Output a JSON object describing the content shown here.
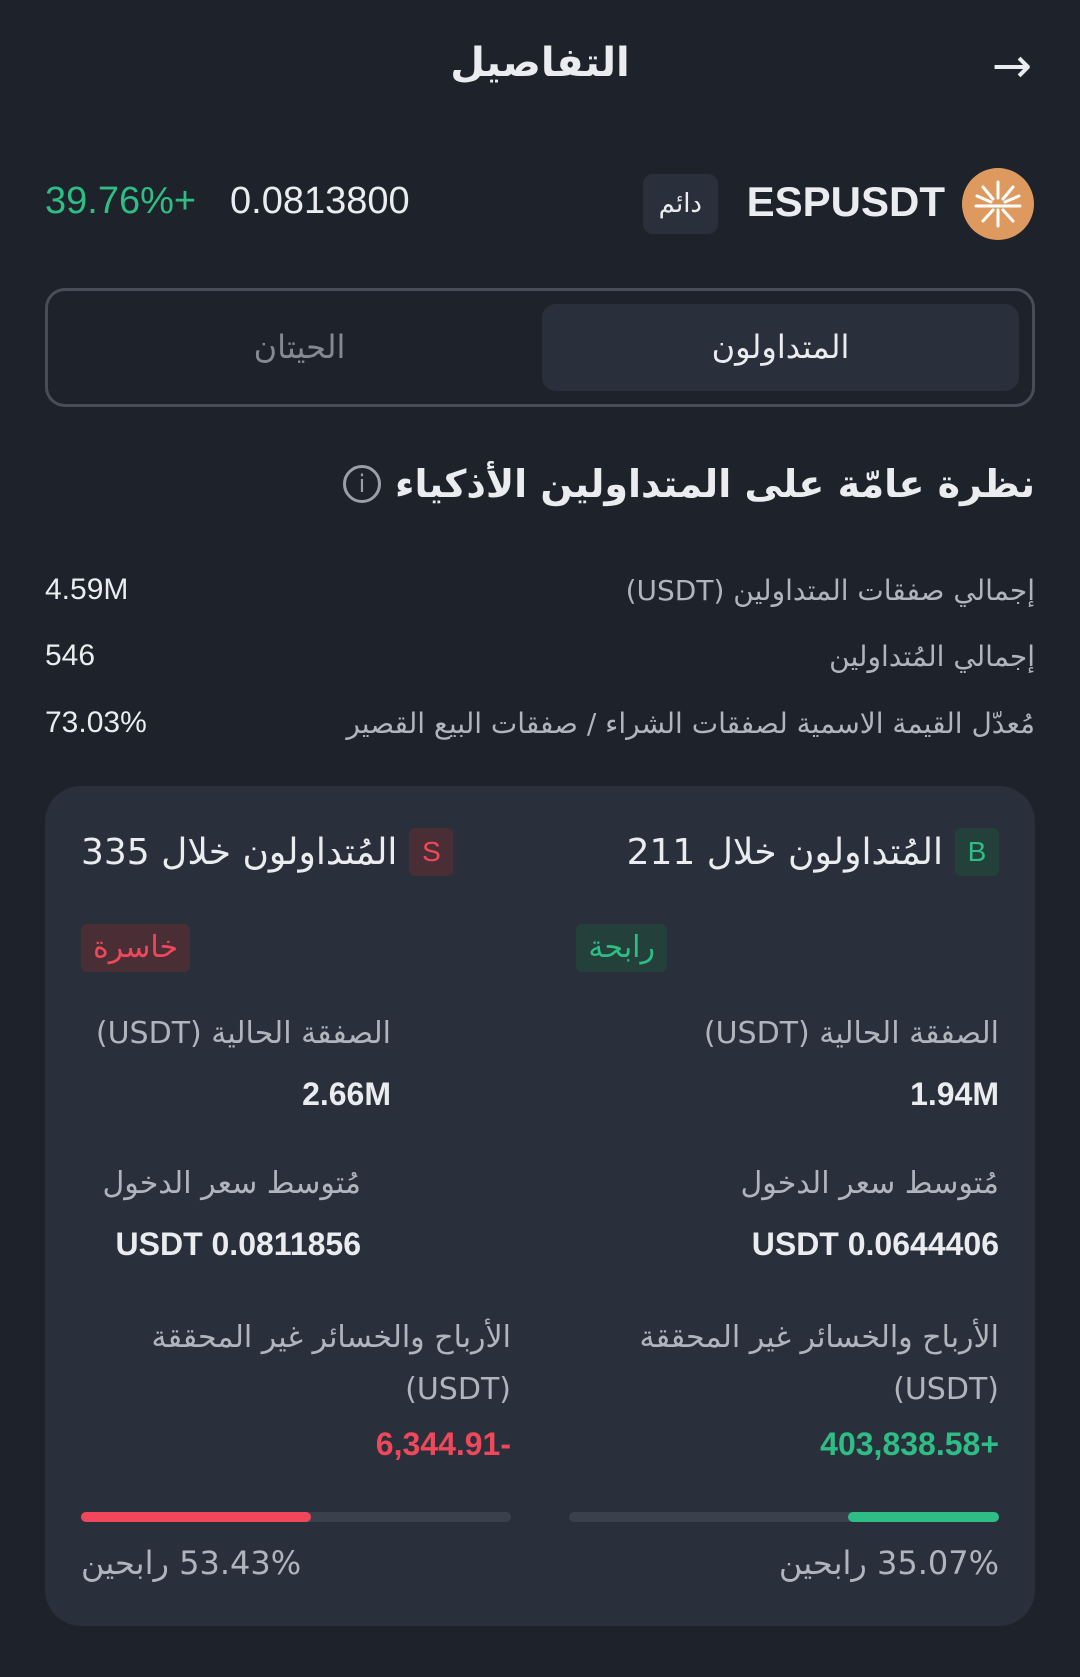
{
  "header": {
    "title": "التفاصيل",
    "back_icon": "arrow-right-icon"
  },
  "ticker": {
    "symbol": "ESPUSDT",
    "type": "دائم",
    "price": "0.0813800",
    "change": "39.76%+",
    "logo_color": "#de9a5e"
  },
  "tabs": [
    {
      "label": "المتداولون",
      "active": true
    },
    {
      "label": "الحيتان",
      "active": false
    }
  ],
  "overview": {
    "title": "نظرة عامّة على المتداولين الأذكياء",
    "stats": [
      {
        "label": "إجمالي صفقات المتداولين (USDT)",
        "value": "4.59M"
      },
      {
        "label": "إجمالي المُتداولين",
        "value": "546"
      },
      {
        "label": "مُعدّل القيمة الاسمية لصفقات الشراء / صفقات البيع القصير",
        "value": "73.03%"
      }
    ]
  },
  "colors": {
    "green": "#2ebd85",
    "red": "#f0485a"
  },
  "buy": {
    "badge": "B",
    "title": "المُتداولون خلال 211",
    "tag": "رابحة",
    "position_label": "الصفقة الحالية (USDT)",
    "position": "1.94M",
    "entry_label": "مُتوسط سعر الدخول",
    "entry": "USDT 0.0644406",
    "pnl_label": "الأرباح والخسائر غير المحققة (USDT)",
    "pnl": "403,838.58+",
    "win_rate": 35.07,
    "win_label": "35.07% رابحين"
  },
  "sell": {
    "badge": "S",
    "title": "المُتداولون خلال 335",
    "tag": "خاسرة",
    "position_label": "الصفقة الحالية (USDT)",
    "position": "2.66M",
    "entry_label": "مُتوسط سعر الدخول",
    "entry": "USDT 0.0811856",
    "pnl_label": "الأرباح والخسائر غير المحققة (USDT)",
    "pnl": "6,344.91-",
    "win_rate": 53.43,
    "win_label": "53.43% رابحين"
  }
}
